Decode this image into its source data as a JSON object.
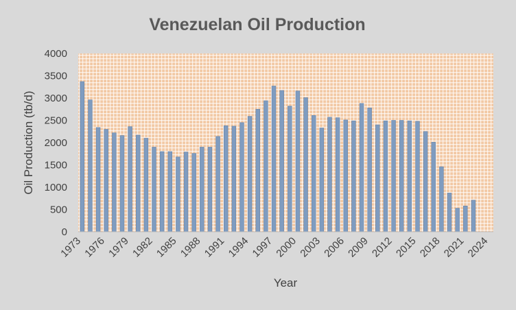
{
  "chart_data": {
    "type": "bar",
    "title": "Venezuelan Oil Production",
    "xlabel": "Year",
    "ylabel": "Oil Production (tb/d)",
    "ylim": [
      0,
      4000
    ],
    "yticks": [
      0,
      500,
      1000,
      1500,
      2000,
      2500,
      3000,
      3500,
      4000
    ],
    "xlim": [
      1973,
      2025
    ],
    "xtick_labels": [
      "1973",
      "1976",
      "1979",
      "1982",
      "1985",
      "1988",
      "1991",
      "1994",
      "1997",
      "2000",
      "2003",
      "2006",
      "2009",
      "2012",
      "2015",
      "2018",
      "2021",
      "2024"
    ],
    "legend": "none",
    "grid": "plot-area pattern",
    "colors": {
      "bar": "#7f9cc0",
      "bar_edge": "#6583a8",
      "plot_bg": "#f2c9a5",
      "plot_grid": "#ffffff",
      "page_bg": "#d9d9d9"
    },
    "categories": [
      1973,
      1974,
      1975,
      1976,
      1977,
      1978,
      1979,
      1980,
      1981,
      1982,
      1983,
      1984,
      1985,
      1986,
      1987,
      1988,
      1989,
      1990,
      1991,
      1992,
      1993,
      1994,
      1995,
      1996,
      1997,
      1998,
      1999,
      2000,
      2001,
      2002,
      2003,
      2004,
      2005,
      2006,
      2007,
      2008,
      2009,
      2010,
      2011,
      2012,
      2013,
      2014,
      2015,
      2016,
      2017,
      2018,
      2019,
      2020,
      2021,
      2022
    ],
    "values": [
      3370,
      2960,
      2340,
      2300,
      2220,
      2160,
      2360,
      2170,
      2100,
      1900,
      1800,
      1800,
      1680,
      1790,
      1760,
      1900,
      1900,
      2140,
      2380,
      2370,
      2450,
      2590,
      2750,
      2940,
      3270,
      3170,
      2820,
      3160,
      3010,
      2610,
      2330,
      2570,
      2560,
      2510,
      2490,
      2880,
      2780,
      2400,
      2490,
      2500,
      2500,
      2490,
      2480,
      2250,
      2010,
      1460,
      870,
      530,
      580,
      710
    ]
  }
}
